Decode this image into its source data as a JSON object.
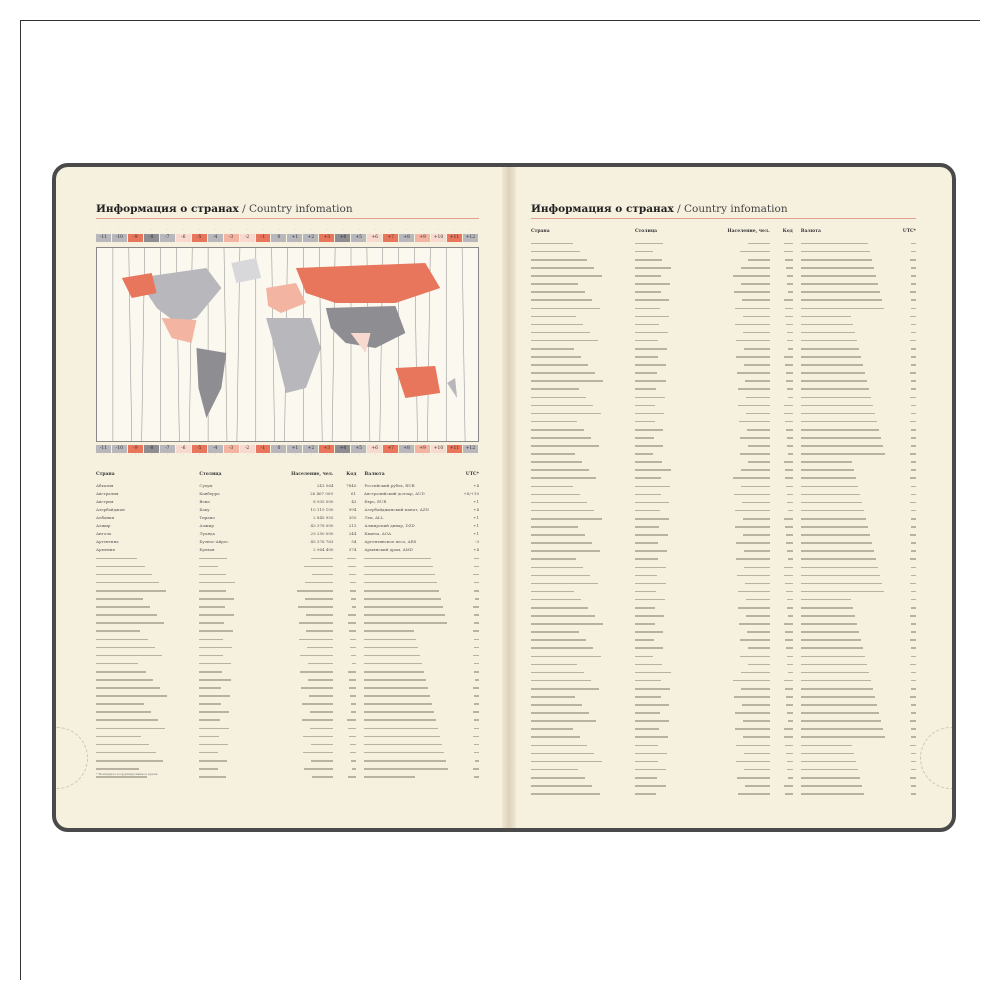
{
  "left_page": {
    "title_ru": "Информация о странах",
    "title_en": "/ Country infomation",
    "timezones": [
      "-11",
      "-10",
      "-9",
      "-8",
      "-7",
      "-6",
      "-5",
      "-4",
      "-3",
      "-2",
      "-1",
      "0",
      "+1",
      "+2",
      "+3",
      "+4",
      "+5",
      "+6",
      "+7",
      "+8",
      "+9",
      "+10",
      "+11",
      "+12"
    ],
    "columns": [
      "Страна",
      "Столица",
      "Население, чел.",
      "Код",
      "Валюта",
      "UTC*"
    ],
    "rows": [
      [
        "Абхазия",
        "Сухум",
        "243 564",
        "7840",
        "Российский рубль, RUB",
        "+4"
      ],
      [
        "Австралия",
        "Канберра",
        "26 467 000",
        "61",
        "Австралийский доллар, AUD",
        "+8/+10"
      ],
      [
        "Австрия",
        "Вена",
        "8 935 000",
        "43",
        "Евро, EUR",
        "+1"
      ],
      [
        "Азербайджан",
        "Баку",
        "10 119 100",
        "994",
        "Азербайджанский манат, AZN",
        "+4"
      ],
      [
        "Албания",
        "Тирана",
        "2 845 955",
        "355",
        "Лек, ALL",
        "+1"
      ],
      [
        "Алжир",
        "Алжир",
        "43 378 000",
        "213",
        "Алжирский динар, DZD",
        "+1"
      ],
      [
        "Ангола",
        "Луанда",
        "29 250 000",
        "244",
        "Кванза, AOA",
        "+1"
      ],
      [
        "Аргентина",
        "Буэнос-Айрес",
        "45 376 763",
        "54",
        "Аргентинское песо, ARS",
        "-3"
      ],
      [
        "Армения",
        "Ереван",
        "2 964 400",
        "374",
        "Армянский драм, AMD",
        "+4"
      ]
    ],
    "filler_row_count": 28,
    "footnote": "* Всемирное координированное время"
  },
  "right_page": {
    "title_ru": "Информация о странах",
    "title_en": "/ Country infomation",
    "columns": [
      "Страна",
      "Столица",
      "Население, чел.",
      "Код",
      "Валюта",
      "UTC*"
    ],
    "filler_row_count": 69
  },
  "colors": {
    "accent_orange": "#e8765c",
    "light_orange": "#f3b4a2",
    "pale_pink": "#f8d9cf",
    "gray": "#b8b8bc",
    "dark_gray": "#8d8d92",
    "page": "#f6f0df",
    "cover": "#4a4a4a"
  }
}
